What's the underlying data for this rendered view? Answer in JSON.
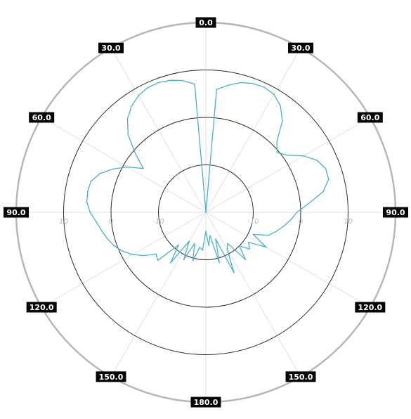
{
  "chart_data": {
    "type": "line",
    "subtype": "polar-radiation-pattern",
    "title": "",
    "angle_labels": [
      {
        "angle": 0,
        "text": "0.0"
      },
      {
        "angle": 30,
        "text": "30.0"
      },
      {
        "angle": 60,
        "text": "60.0"
      },
      {
        "angle": 90,
        "text": "90.0"
      },
      {
        "angle": 120,
        "text": "120.0"
      },
      {
        "angle": 150,
        "text": "150.0"
      },
      {
        "angle": 180,
        "text": "180.0"
      },
      {
        "angle": 210,
        "text": "150.0"
      },
      {
        "angle": 240,
        "text": "120.0"
      },
      {
        "angle": 270,
        "text": "90.0"
      },
      {
        "angle": 300,
        "text": "60.0"
      },
      {
        "angle": 330,
        "text": "30.0"
      }
    ],
    "radial_rings": [
      -10,
      0,
      10,
      20
    ],
    "radial_tick_labels": [
      {
        "value": -10,
        "text": "-10"
      },
      {
        "value": 0,
        "text": "0"
      },
      {
        "value": 10,
        "text": "10"
      }
    ],
    "rlim": [
      -20,
      20
    ],
    "grid": true,
    "colors": {
      "trace": "#4bb0c8",
      "ring": "#2b2b2b",
      "outer_ring": "#b5b5b5",
      "spoke": "#e6e6e6",
      "tag_bg": "#050505"
    },
    "series": [
      {
        "theta": [
          0,
          5,
          10,
          15,
          20,
          25,
          30,
          35,
          40,
          45,
          50,
          55,
          60,
          65,
          70,
          75,
          80,
          85,
          90,
          95,
          100,
          105,
          110,
          115,
          120,
          125,
          130,
          135,
          140,
          145,
          150,
          155,
          160,
          165,
          170,
          175,
          180,
          185,
          190,
          195,
          200,
          205,
          210,
          215,
          220,
          225,
          230,
          235,
          240,
          245,
          250,
          255,
          260,
          265,
          270,
          275,
          280,
          285,
          290,
          295,
          300,
          305,
          310,
          315,
          320,
          325,
          330,
          335,
          340,
          345,
          350,
          355
        ],
        "values": [
          -20,
          6,
          7.2,
          8.3,
          8.9,
          9.1,
          8.7,
          7.4,
          5.1,
          1.2,
          -0.4,
          1.0,
          3.8,
          5.9,
          6.9,
          6.8,
          5.1,
          1.8,
          -0.8,
          -2.0,
          -3.3,
          -4.6,
          -5.9,
          -9.0,
          -5.3,
          -9.0,
          -8.0,
          -10.0,
          -7.0,
          -12.0,
          -11.0,
          -6.0,
          -14.0,
          -9.0,
          -15.0,
          -13.0,
          -16.0,
          -12.0,
          -12.5,
          -9.5,
          -13.0,
          -9.0,
          -13.0,
          -7.0,
          -11.0,
          -5.7,
          -6.3,
          -4.1,
          -2.2,
          -0.6,
          0.6,
          1.5,
          2.3,
          3.2,
          4.4,
          5.2,
          5.3,
          5.1,
          3.8,
          1.6,
          -0.9,
          -3.9,
          -0.5,
          3.2,
          5.7,
          7.3,
          8.4,
          9.0,
          9.1,
          8.8,
          8.2,
          7.1
        ]
      }
    ]
  }
}
